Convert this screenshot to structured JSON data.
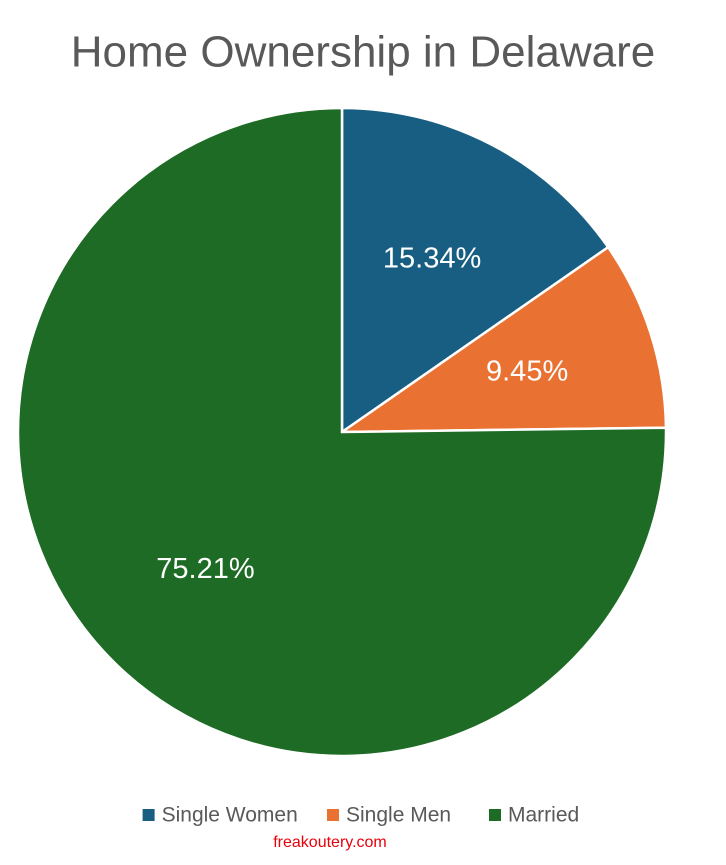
{
  "chart_data": {
    "type": "pie",
    "title": "Home Ownership in Delaware",
    "categories": [
      "Single Women",
      "Single Men",
      "Married"
    ],
    "values": [
      15.34,
      9.45,
      75.21
    ],
    "value_labels": [
      "15.34%",
      "9.45%",
      "75.21%"
    ],
    "colors": [
      "#185e82",
      "#e97132",
      "#1d6b24"
    ],
    "legend": "bottom",
    "source": "freakoutery.com"
  }
}
